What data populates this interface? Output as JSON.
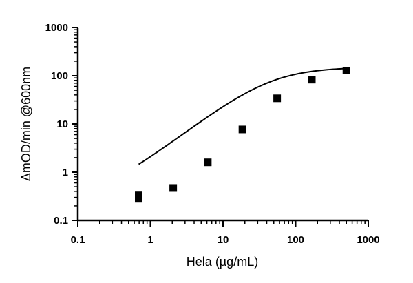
{
  "chart_data": {
    "type": "scatter",
    "xlabel": "Hela (µg/mL)",
    "ylabel": "ΔmOD/min @600nm",
    "x_scale": "log",
    "y_scale": "log",
    "xlim": [
      0.1,
      1000
    ],
    "ylim": [
      0.1,
      1000
    ],
    "x_ticks": [
      0.1,
      1,
      10,
      100,
      1000
    ],
    "x_tick_labels": [
      "0.1",
      "1",
      "10",
      "100",
      "1000"
    ],
    "y_ticks": [
      0.1,
      1,
      10,
      100,
      1000
    ],
    "y_tick_labels": [
      "0.1",
      "1",
      "10",
      "100",
      "1000"
    ],
    "grid": false,
    "series": [
      {
        "marker": "square",
        "color": "#000000",
        "x": [
          0.69,
          0.69,
          2.06,
          6.17,
          18.5,
          55.6,
          167,
          500
        ],
        "y": [
          0.33,
          0.28,
          0.47,
          1.6,
          7.7,
          34,
          83,
          128
        ]
      }
    ],
    "fit_curve": {
      "model": "4PL",
      "bottom": 0.24,
      "top": 150,
      "ec50": 45,
      "hill": 1.15,
      "x_range": [
        0.69,
        500
      ],
      "color": "#000000"
    }
  }
}
